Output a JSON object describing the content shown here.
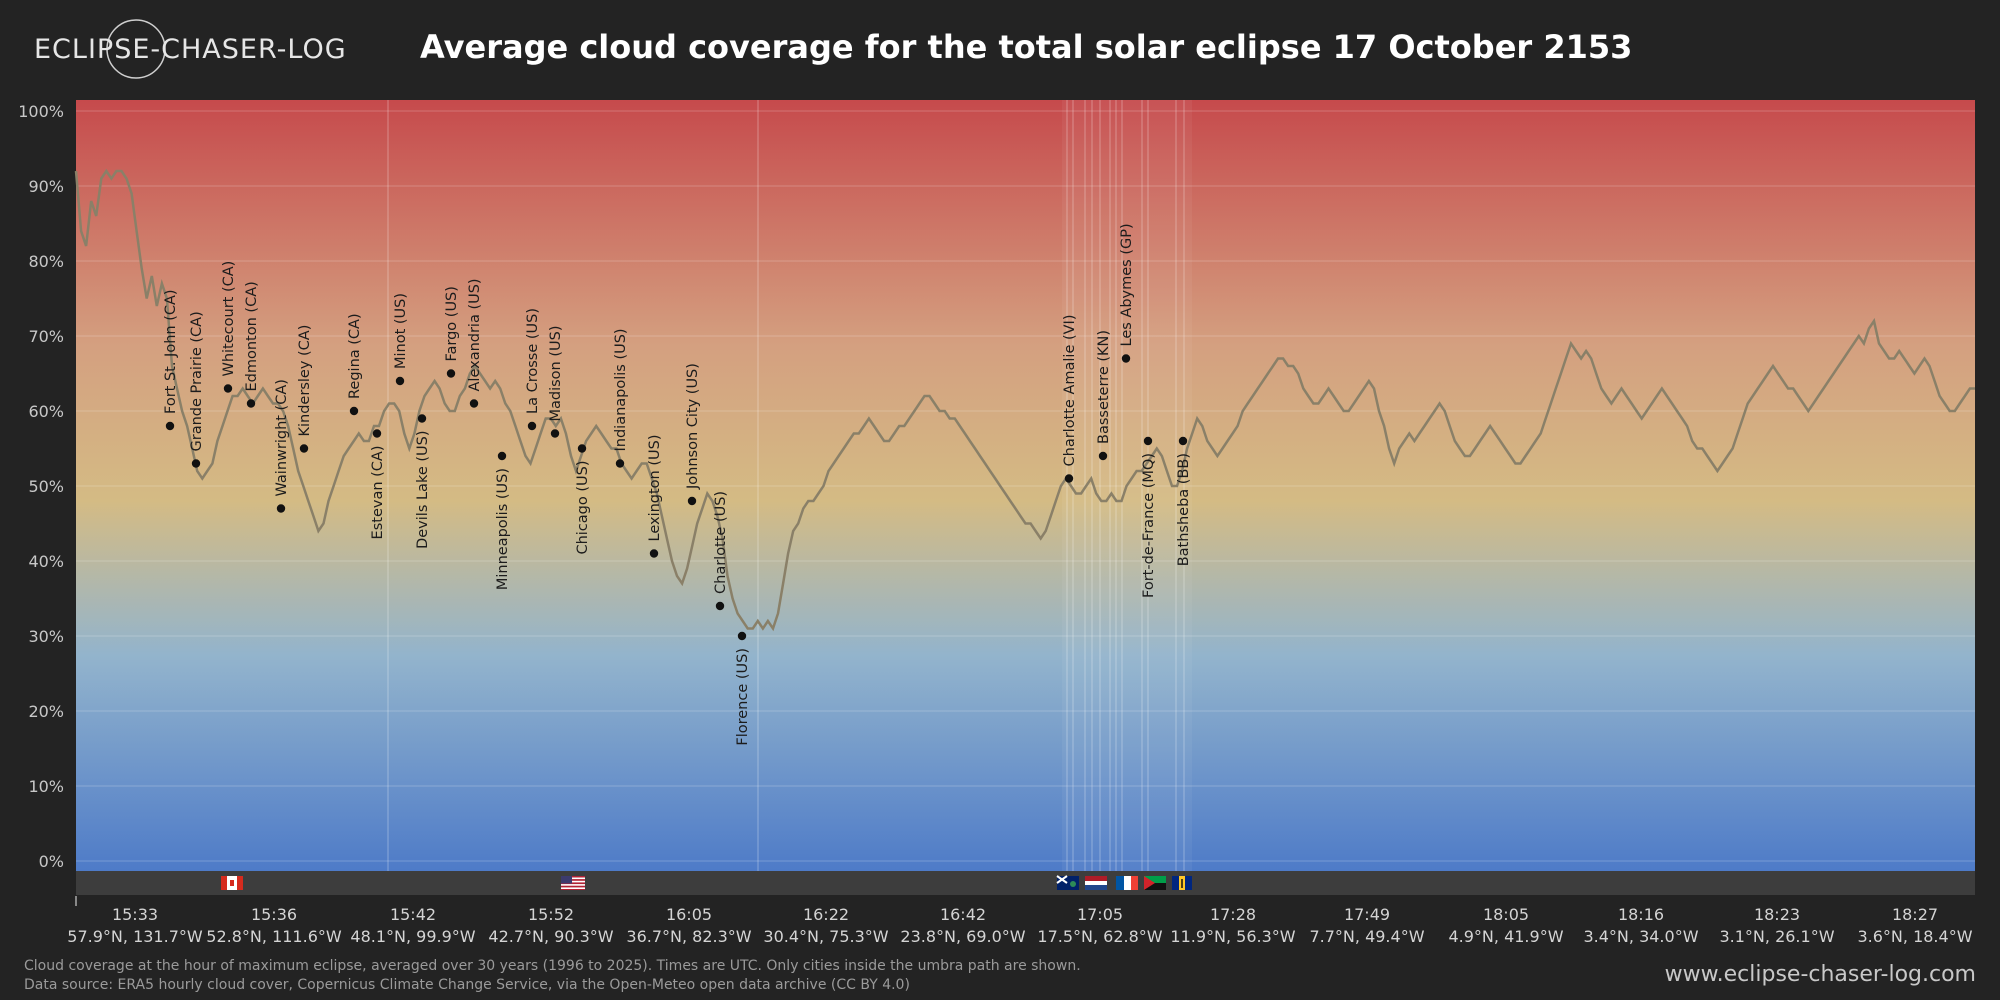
{
  "header": {
    "logo_text": "ECLIPSE-CHASER-LOG",
    "title": "Average cloud coverage for the total solar eclipse 17 October 2153"
  },
  "chart_data": {
    "type": "line",
    "title": "Average cloud coverage for the total solar eclipse 17 October 2153",
    "y_ticks": [
      "0%",
      "10%",
      "20%",
      "30%",
      "40%",
      "50%",
      "60%",
      "70%",
      "80%",
      "90%",
      "100%"
    ],
    "ylim": [
      0,
      100
    ],
    "grid": true,
    "x_axis_ticks": [
      {
        "time": "15:33",
        "coord": "57.9°N, 131.7°W"
      },
      {
        "time": "15:36",
        "coord": "52.8°N, 111.6°W"
      },
      {
        "time": "15:42",
        "coord": "48.1°N, 99.9°W"
      },
      {
        "time": "15:52",
        "coord": "42.7°N, 90.3°W"
      },
      {
        "time": "16:05",
        "coord": "36.7°N, 82.3°W"
      },
      {
        "time": "16:22",
        "coord": "30.4°N, 75.3°W"
      },
      {
        "time": "16:42",
        "coord": "23.8°N, 69.0°W"
      },
      {
        "time": "17:05",
        "coord": "17.5°N, 62.8°W"
      },
      {
        "time": "17:28",
        "coord": "11.9°N, 56.3°W"
      },
      {
        "time": "17:49",
        "coord": "7.7°N, 49.4°W"
      },
      {
        "time": "18:05",
        "coord": "4.9°N, 41.9°W"
      },
      {
        "time": "18:16",
        "coord": "3.4°N, 34.0°W"
      },
      {
        "time": "18:23",
        "coord": "3.1°N, 26.1°W"
      },
      {
        "time": "18:27",
        "coord": "3.6°N, 18.4°W"
      }
    ],
    "series": [
      {
        "values": [
          92,
          84,
          82,
          88,
          86,
          91,
          92,
          91,
          92,
          92,
          91,
          89,
          84,
          79,
          75,
          78,
          74,
          77,
          75,
          66,
          63,
          60,
          58,
          55,
          52,
          51,
          52,
          53,
          56,
          58,
          60,
          62,
          62,
          63,
          62,
          61,
          62,
          63,
          62,
          61,
          61,
          60,
          58,
          55,
          52,
          50,
          48,
          46,
          44,
          45,
          48,
          50,
          52,
          54,
          55,
          56,
          57,
          56,
          56,
          58,
          58,
          60,
          61,
          61,
          60,
          57,
          55,
          57,
          60,
          62,
          63,
          64,
          63,
          61,
          60,
          60,
          62,
          63,
          65,
          66,
          65,
          64,
          63,
          64,
          63,
          61,
          60,
          58,
          56,
          54,
          53,
          55,
          57,
          59,
          59,
          58,
          59,
          57,
          54,
          52,
          54,
          56,
          57,
          58,
          57,
          56,
          55,
          55,
          53,
          52,
          51,
          52,
          53,
          53,
          51,
          49,
          46,
          43,
          40,
          38,
          37,
          39,
          42,
          45,
          47,
          49,
          48,
          46,
          43,
          38,
          35,
          33,
          32,
          31,
          31,
          32,
          31,
          32,
          31,
          33,
          37,
          41,
          44,
          45,
          47,
          48,
          48,
          49,
          50,
          52,
          53,
          54,
          55,
          56,
          57,
          57,
          58,
          59,
          58,
          57,
          56,
          56,
          57,
          58,
          58,
          59,
          60,
          61,
          62,
          62,
          61,
          60,
          60,
          59,
          59,
          58,
          57,
          56,
          55,
          54,
          53,
          52,
          51,
          50,
          49,
          48,
          47,
          46,
          45,
          45,
          44,
          43,
          44,
          46,
          48,
          50,
          51,
          50,
          49,
          49,
          50,
          51,
          49,
          48,
          48,
          49,
          48,
          48,
          50,
          51,
          52,
          52,
          53,
          54,
          55,
          54,
          52,
          50,
          50,
          52,
          55,
          57,
          59,
          58,
          56,
          55,
          54,
          55,
          56,
          57,
          58,
          60,
          61,
          62,
          63,
          64,
          65,
          66,
          67,
          67,
          66,
          66,
          65,
          63,
          62,
          61,
          61,
          62,
          63,
          62,
          61,
          60,
          60,
          61,
          62,
          63,
          64,
          63,
          60,
          58,
          55,
          53,
          55,
          56,
          57,
          56,
          57,
          58,
          59,
          60,
          61,
          60,
          58,
          56,
          55,
          54,
          54,
          55,
          56,
          57,
          58,
          57,
          56,
          55,
          54,
          53,
          53,
          54,
          55,
          56,
          57,
          59,
          61,
          63,
          65,
          67,
          69,
          68,
          67,
          68,
          67,
          65,
          63,
          62,
          61,
          62,
          63,
          62,
          61,
          60,
          59,
          60,
          61,
          62,
          63,
          62,
          61,
          60,
          59,
          58,
          56,
          55,
          55,
          54,
          53,
          52,
          53,
          54,
          55,
          57,
          59,
          61,
          62,
          63,
          64,
          65,
          66,
          65,
          64,
          63,
          63,
          62,
          61,
          60,
          61,
          62,
          63,
          64,
          65,
          66,
          67,
          68,
          69,
          70,
          69,
          71,
          72,
          69,
          68,
          67,
          67,
          68,
          67,
          66,
          65,
          66,
          67,
          66,
          64,
          62,
          61,
          60,
          60,
          61,
          62,
          63,
          63
        ],
        "name": "Average cloud coverage"
      }
    ],
    "cities": [
      {
        "name": "Fort St. John (CA)",
        "value": 58
      },
      {
        "name": "Grande Prairie (CA)",
        "value": 53
      },
      {
        "name": "Whitecourt (CA)",
        "value": 63
      },
      {
        "name": "Edmonton (CA)",
        "value": 61
      },
      {
        "name": "Wainwright (CA)",
        "value": 47
      },
      {
        "name": "Kindersley (CA)",
        "value": 55
      },
      {
        "name": "Regina (CA)",
        "value": 60
      },
      {
        "name": "Estevan (CA)",
        "value": 57
      },
      {
        "name": "Minot (US)",
        "value": 64
      },
      {
        "name": "Devils Lake (US)",
        "value": 59
      },
      {
        "name": "Fargo (US)",
        "value": 65
      },
      {
        "name": "Alexandria (US)",
        "value": 61
      },
      {
        "name": "Minneapolis (US)",
        "value": 54
      },
      {
        "name": "La Crosse (US)",
        "value": 58
      },
      {
        "name": "Madison (US)",
        "value": 57
      },
      {
        "name": "Chicago (US)",
        "value": 55
      },
      {
        "name": "Indianapolis (US)",
        "value": 53
      },
      {
        "name": "Lexington (US)",
        "value": 41
      },
      {
        "name": "Johnson City (US)",
        "value": 48
      },
      {
        "name": "Charlotte (US)",
        "value": 34
      },
      {
        "name": "Florence (US)",
        "value": 30
      },
      {
        "name": "Charlotte Amalie (VI)",
        "value": 51
      },
      {
        "name": "Basseterre (KN)",
        "value": 54
      },
      {
        "name": "Les Abymes (GP)",
        "value": 67
      },
      {
        "name": "Fort-de-France (MQ)",
        "value": 56
      },
      {
        "name": "Bathsheba (BB)",
        "value": 56
      }
    ],
    "country_bands": [
      {
        "country": "CA",
        "flag": "canada-flag"
      },
      {
        "country": "US",
        "flag": "usa-flag"
      },
      {
        "country": "VI",
        "flag": "virgin-islands-flag"
      },
      {
        "country": "KN",
        "flag": "netherlands-flag"
      },
      {
        "country": "GP",
        "flag": "france-flag"
      },
      {
        "country": "MQ",
        "flag": "martinique-flag"
      },
      {
        "country": "BB",
        "flag": "barbados-flag"
      }
    ],
    "colors": {
      "line": "#8a8068",
      "top": "#c64a4c",
      "middle": "#d4b880",
      "bottom": "#4e7bc8",
      "background": "#232323",
      "band": "#3d3d3d"
    }
  },
  "footer": {
    "note_line1": "Cloud coverage at the hour of maximum eclipse, averaged over 30 years (1996 to 2025). Times are UTC. Only cities inside the umbra path are shown.",
    "note_line2": "Data source: ERA5 hourly cloud cover, Copernicus Climate Change Service, via the Open-Meteo open data archive (CC BY 4.0)",
    "website": "www.eclipse-chaser-log.com"
  }
}
